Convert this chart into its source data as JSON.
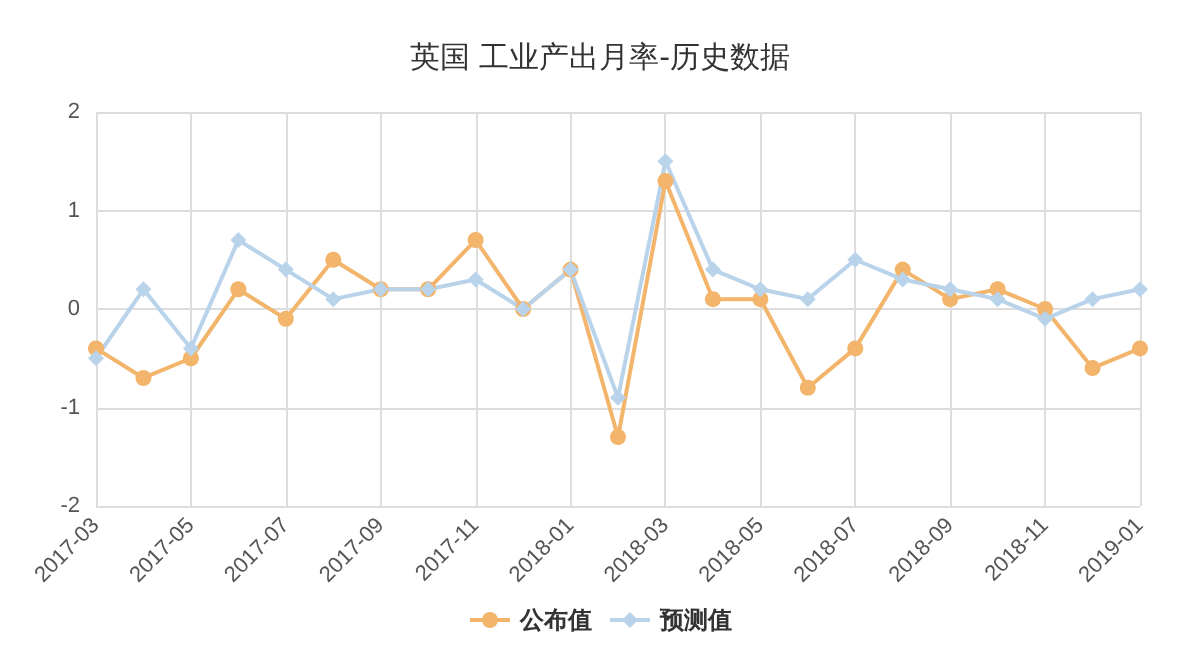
{
  "chart_data": {
    "type": "line",
    "title": "英国 工业产出月率-历史数据",
    "categories": [
      "2017-03",
      null,
      "2017-05",
      null,
      "2017-07",
      null,
      "2017-09",
      null,
      "2017-11",
      null,
      "2018-01",
      null,
      "2018-03",
      null,
      "2018-05",
      null,
      "2018-07",
      null,
      "2018-09",
      null,
      "2018-11",
      null,
      "2019-01"
    ],
    "series": [
      {
        "name": "公布值",
        "color": "#f2b56b",
        "marker": "circle",
        "values": [
          -0.4,
          -0.7,
          -0.5,
          0.2,
          -0.1,
          0.5,
          0.2,
          0.2,
          0.7,
          0.0,
          0.4,
          -1.3,
          1.3,
          0.1,
          0.1,
          -0.8,
          -0.4,
          0.4,
          0.1,
          0.2,
          0.0,
          -0.6,
          -0.4
        ]
      },
      {
        "name": "预测值",
        "color": "#b9d3ea",
        "marker": "diamond",
        "values": [
          -0.5,
          0.2,
          -0.4,
          0.7,
          0.4,
          0.1,
          0.2,
          0.2,
          0.3,
          0.0,
          0.4,
          -0.9,
          1.5,
          0.4,
          0.2,
          0.1,
          0.5,
          0.3,
          0.2,
          0.1,
          -0.1,
          0.1,
          0.2
        ]
      }
    ],
    "ylim": [
      -2,
      2
    ],
    "yticks": [
      -2,
      -1,
      0,
      1,
      2
    ],
    "grid": true,
    "legend": "bottom",
    "line_style": "solid"
  }
}
